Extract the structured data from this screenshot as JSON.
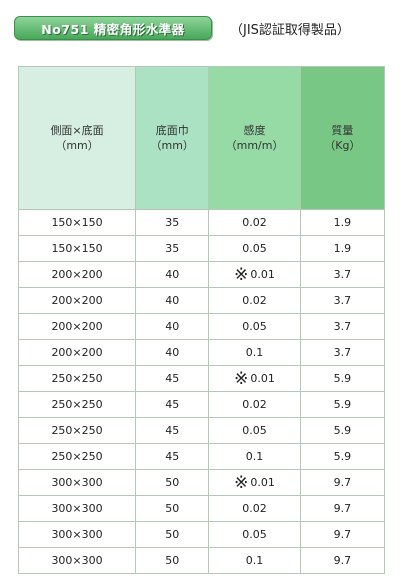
{
  "header": {
    "product_code": "No751 精密角形水準器",
    "certification": "（JIS認証取得製品）"
  },
  "table": {
    "columns": [
      {
        "label": "側面×底面",
        "unit": "（mm）"
      },
      {
        "label": "底面巾",
        "unit": "（mm）"
      },
      {
        "label": "感度",
        "unit": "（mm/m）"
      },
      {
        "label": "質量",
        "unit": "（Kg）"
      }
    ],
    "rows": [
      {
        "size": "150×150",
        "width": "35",
        "mark": "",
        "sensitivity": "0.02",
        "mass": "1.9"
      },
      {
        "size": "150×150",
        "width": "35",
        "mark": "",
        "sensitivity": "0.05",
        "mass": "1.9"
      },
      {
        "size": "200×200",
        "width": "40",
        "mark": "※",
        "sensitivity": "0.01",
        "mass": "3.7"
      },
      {
        "size": "200×200",
        "width": "40",
        "mark": "",
        "sensitivity": "0.02",
        "mass": "3.7"
      },
      {
        "size": "200×200",
        "width": "40",
        "mark": "",
        "sensitivity": "0.05",
        "mass": "3.7"
      },
      {
        "size": "200×200",
        "width": "40",
        "mark": "",
        "sensitivity": "0.1",
        "mass": "3.7"
      },
      {
        "size": "250×250",
        "width": "45",
        "mark": "※",
        "sensitivity": "0.01",
        "mass": "5.9"
      },
      {
        "size": "250×250",
        "width": "45",
        "mark": "",
        "sensitivity": "0.02",
        "mass": "5.9"
      },
      {
        "size": "250×250",
        "width": "45",
        "mark": "",
        "sensitivity": "0.05",
        "mass": "5.9"
      },
      {
        "size": "250×250",
        "width": "45",
        "mark": "",
        "sensitivity": "0.1",
        "mass": "5.9"
      },
      {
        "size": "300×300",
        "width": "50",
        "mark": "※",
        "sensitivity": "0.01",
        "mass": "9.7"
      },
      {
        "size": "300×300",
        "width": "50",
        "mark": "",
        "sensitivity": "0.02",
        "mass": "9.7"
      },
      {
        "size": "300×300",
        "width": "50",
        "mark": "",
        "sensitivity": "0.05",
        "mass": "9.7"
      },
      {
        "size": "300×300",
        "width": "50",
        "mark": "",
        "sensitivity": "0.1",
        "mass": "9.7"
      }
    ]
  }
}
